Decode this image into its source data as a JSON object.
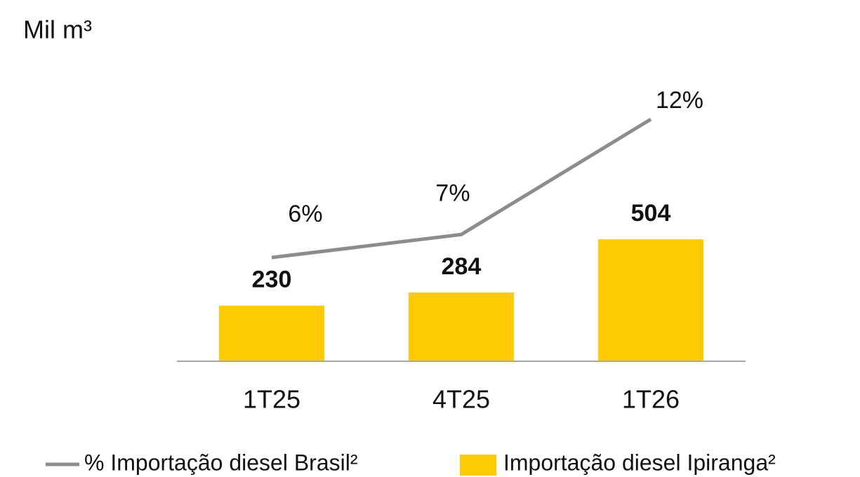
{
  "chart_data": {
    "type": "bar_line",
    "title": "Mil m³",
    "categories": [
      "1T25",
      "4T25",
      "1T26"
    ],
    "series": [
      {
        "name": "Importação diesel Ipiranga²",
        "type": "bar",
        "color": "#ffcb05",
        "values": [
          230,
          284,
          504
        ]
      },
      {
        "name": "% Importação diesel Brasil²",
        "type": "line",
        "axis": "y2",
        "color": "#8c8c8c",
        "values": [
          6,
          7,
          12
        ],
        "value_labels": [
          "6%",
          "7%",
          "12%"
        ]
      }
    ],
    "ylim": [
      0,
      1400
    ],
    "y2lim": [
      1.5,
      16.2
    ],
    "grid": false,
    "legend": "bottom"
  }
}
